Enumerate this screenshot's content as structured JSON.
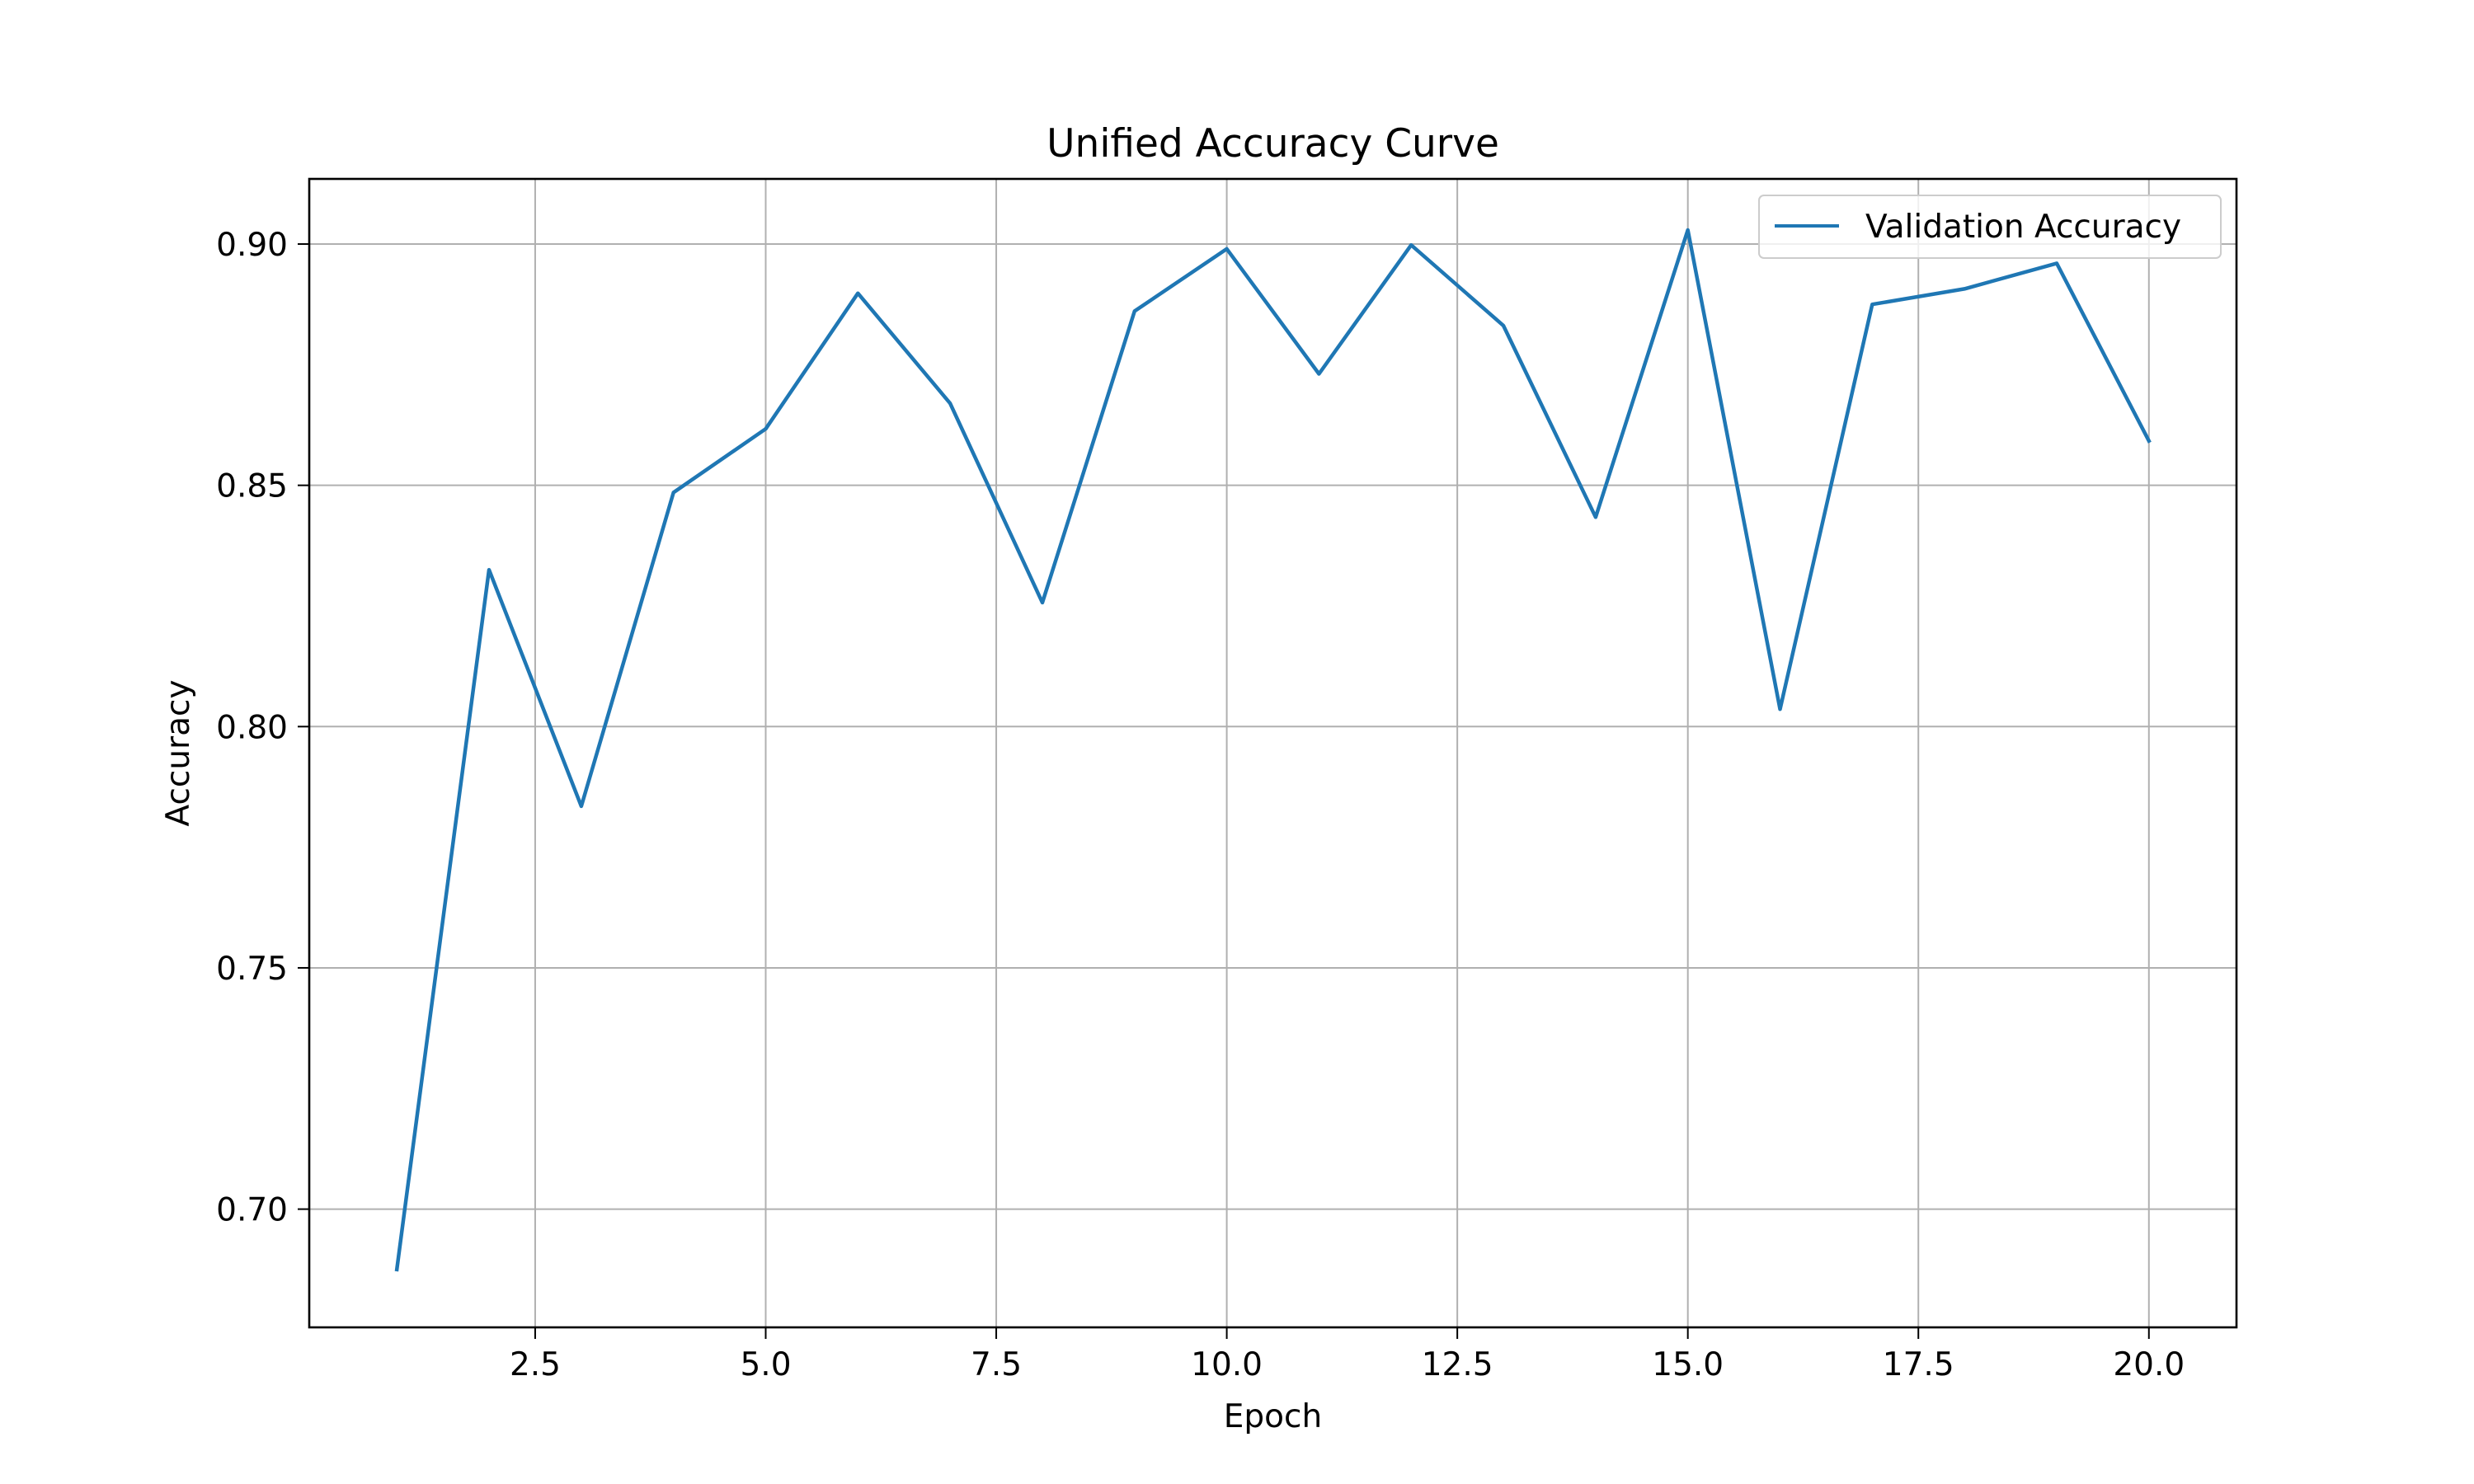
{
  "chart_data": {
    "type": "line",
    "title": "Unified Accuracy Curve",
    "xlabel": "Epoch",
    "ylabel": "Accuracy",
    "xlim": [
      0.05,
      20.95
    ],
    "ylim": [
      0.6755,
      0.9135
    ],
    "xticks": [
      2.5,
      5.0,
      7.5,
      10.0,
      12.5,
      15.0,
      17.5,
      20.0
    ],
    "xtick_labels": [
      "2.5",
      "5.0",
      "7.5",
      "10.0",
      "12.5",
      "15.0",
      "17.5",
      "20.0"
    ],
    "yticks": [
      0.7,
      0.75,
      0.8,
      0.85,
      0.9
    ],
    "ytick_labels": [
      "0.70",
      "0.75",
      "0.80",
      "0.85",
      "0.90"
    ],
    "grid": true,
    "legend_position": "top-right",
    "x": [
      1,
      2,
      3,
      4,
      5,
      6,
      7,
      8,
      9,
      10,
      11,
      12,
      13,
      14,
      15,
      16,
      17,
      18,
      19,
      20
    ],
    "series": [
      {
        "name": "Validation Accuracy",
        "color": "#1f77b4",
        "values": [
          0.6875,
          0.8325,
          0.7835,
          0.8485,
          0.8617,
          0.8898,
          0.867,
          0.8257,
          0.8861,
          0.899,
          0.8731,
          0.8998,
          0.8831,
          0.8434,
          0.9029,
          0.8036,
          0.8875,
          0.8907,
          0.896,
          0.8592
        ]
      }
    ]
  }
}
